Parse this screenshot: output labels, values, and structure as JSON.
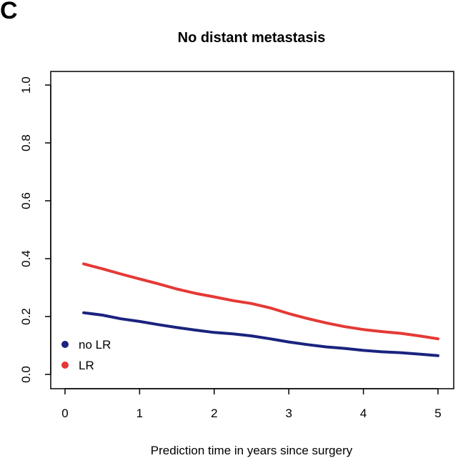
{
  "panel_label": "C",
  "chart_data": {
    "type": "line",
    "title": "No distant metastasis",
    "xlabel": "Prediction time in years since surgery",
    "ylabel": "",
    "xlim": [
      0,
      5
    ],
    "ylim": [
      0,
      1
    ],
    "xticks": [
      "0",
      "1",
      "2",
      "3",
      "4",
      "5"
    ],
    "yticks": [
      "0.0",
      "0.2",
      "0.4",
      "0.6",
      "0.8",
      "1.0"
    ],
    "grid": false,
    "legend_position": "bottom-left",
    "series": [
      {
        "name": "no LR",
        "color": "#1a237e",
        "x": [
          0.25,
          0.5,
          0.75,
          1.0,
          1.25,
          1.5,
          1.75,
          2.0,
          2.25,
          2.5,
          2.75,
          3.0,
          3.25,
          3.5,
          3.75,
          4.0,
          4.25,
          4.5,
          4.75,
          5.0
        ],
        "y": [
          0.213,
          0.205,
          0.192,
          0.183,
          0.172,
          0.162,
          0.153,
          0.145,
          0.14,
          0.133,
          0.123,
          0.112,
          0.103,
          0.095,
          0.09,
          0.083,
          0.078,
          0.075,
          0.07,
          0.065
        ]
      },
      {
        "name": "LR",
        "color": "#e53935",
        "x": [
          0.25,
          0.5,
          0.75,
          1.0,
          1.25,
          1.5,
          1.75,
          2.0,
          2.25,
          2.5,
          2.75,
          3.0,
          3.25,
          3.5,
          3.75,
          4.0,
          4.25,
          4.5,
          4.75,
          5.0
        ],
        "y": [
          0.382,
          0.365,
          0.347,
          0.33,
          0.313,
          0.295,
          0.28,
          0.268,
          0.255,
          0.245,
          0.23,
          0.21,
          0.193,
          0.178,
          0.165,
          0.155,
          0.148,
          0.142,
          0.133,
          0.123
        ]
      }
    ]
  }
}
